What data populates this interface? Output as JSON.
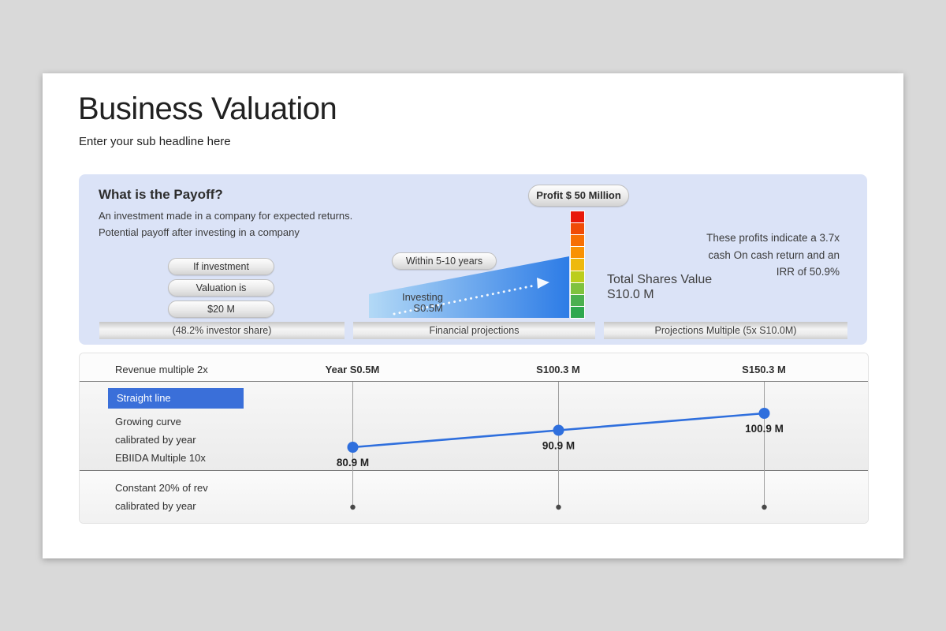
{
  "page": {
    "title": "Business Valuation",
    "subtitle": "Enter your sub headline here"
  },
  "payoff": {
    "heading": "What is the Payoff?",
    "description_line1": "An investment made in a company for expected returns.",
    "description_line2": "Potential payoff after investing in a company",
    "pills": [
      "If investment",
      "Valuation is",
      "$20 M"
    ],
    "profit_badge": "Profit $ 50 Million",
    "duration_pill": "Within 5-10 years",
    "investing_line1": "Investing",
    "investing_line2": "S0.5M",
    "total_shares_line1": "Total Shares Value",
    "total_shares_line2": "S10.0 M",
    "note_line1": "These profits indicate a 3.7x",
    "note_line2": "cash On cash return and an",
    "note_line3": "IRR of 50.9%",
    "bottom_bars": [
      "(48.2% investor share)",
      "Financial projections",
      "Projections Multiple (5x S10.0M)"
    ],
    "thermometer_colors": [
      "#e81809",
      "#f04b06",
      "#f76f03",
      "#f99204",
      "#eeb90d",
      "#bccd1c",
      "#7fc23e",
      "#4bb050",
      "#2ea84f"
    ],
    "wedge_color_start": "#b3d9f6",
    "wedge_color_end": "#2d7ce6"
  },
  "projection": {
    "header_left": "Revenue multiple 2x",
    "row_selected": "Straight line",
    "rows_mid": [
      "Growing curve",
      "calibrated by year",
      "EBIIDA Multiple 10x"
    ],
    "rows_bottom": [
      "Constant 20% of rev",
      "calibrated by year"
    ],
    "selected_color": "#3a6fd9",
    "line_color": "#2f6fdd"
  },
  "chart_data": {
    "type": "line",
    "title": "Projection lines by valuation scenario",
    "categories": [
      "Year S0.5M",
      "S100.3 M",
      "S150.3 M"
    ],
    "series": [
      {
        "name": "Straight line",
        "values": [
          80.9,
          90.9,
          100.9
        ],
        "point_labels": [
          "80.9 M",
          "90.9 M",
          "100.9 M"
        ]
      }
    ],
    "xlabel": "",
    "ylabel": "",
    "grid": "vertical-only",
    "legend": "none"
  }
}
